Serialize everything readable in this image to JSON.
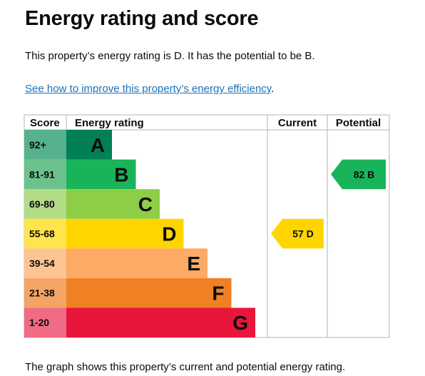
{
  "page": {
    "title": "Energy rating and score",
    "summary": "This property’s energy rating is D. It has the potential to be B.",
    "link_text": "See how to improve this property’s energy efficiency",
    "link_suffix": ".",
    "footer": "The graph shows this property’s current and potential energy rating."
  },
  "chart_data": {
    "type": "bar",
    "headers": {
      "score": "Score",
      "rating": "Energy rating",
      "current": "Current",
      "potential": "Potential"
    },
    "bands": [
      {
        "letter": "A",
        "score_range": "92+",
        "color": "#008054",
        "score_color": "#56b18d"
      },
      {
        "letter": "B",
        "score_range": "81-91",
        "color": "#19b459",
        "score_color": "#6cc28d"
      },
      {
        "letter": "C",
        "score_range": "69-80",
        "color": "#8dce46",
        "score_color": "#b3dc86"
      },
      {
        "letter": "D",
        "score_range": "55-68",
        "color": "#ffd500",
        "score_color": "#ffe44d"
      },
      {
        "letter": "E",
        "score_range": "39-54",
        "color": "#fcaa65",
        "score_color": "#fdc493"
      },
      {
        "letter": "F",
        "score_range": "21-38",
        "color": "#ef8023",
        "score_color": "#f4a465"
      },
      {
        "letter": "G",
        "score_range": "1-20",
        "color": "#e9153b",
        "score_color": "#f06b85"
      }
    ],
    "current": {
      "score": 57,
      "rating": "D",
      "color": "#ffd500"
    },
    "potential": {
      "score": 82,
      "rating": "B",
      "color": "#19b459"
    }
  }
}
